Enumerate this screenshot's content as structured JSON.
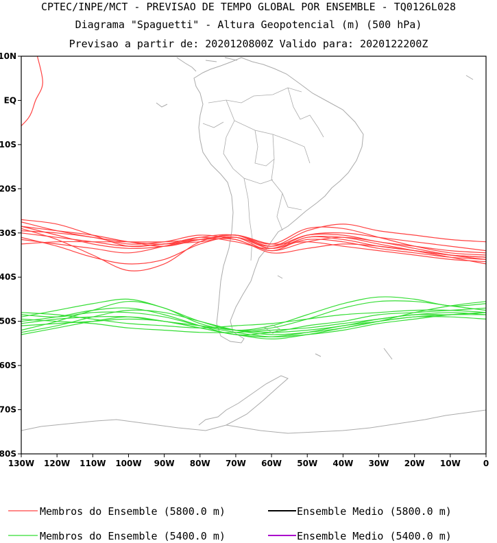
{
  "titles": {
    "line1": "CPTEC/INPE/MCT - PREVISAO DE TEMPO GLOBAL POR ENSEMBLE - TQ0126L028",
    "line2": "Diagrama \"Spaguetti\" - Altura Geopotencial (m) (500 hPa)",
    "line3": "Previsao a partir de: 2020120800Z  Valido para: 2020122200Z"
  },
  "legend": [
    {
      "label": "Membros do Ensemble (5800.0 m)",
      "color": "#ff4040"
    },
    {
      "label": "Ensemble Medio (5800.0 m)",
      "color": "#000000"
    },
    {
      "label": "Membros do Ensemble (5400.0 m)",
      "color": "#33dd33"
    },
    {
      "label": "Ensemble Medio (5400.0 m)",
      "color": "#aa00cc"
    }
  ],
  "chart_data": {
    "type": "line",
    "map_region": "South America",
    "xlim": [
      -130,
      0
    ],
    "ylim": [
      -80,
      10
    ],
    "x_ticks": [
      {
        "v": -130,
        "label": "130W"
      },
      {
        "v": -120,
        "label": "120W"
      },
      {
        "v": -110,
        "label": "110W"
      },
      {
        "v": -100,
        "label": "100W"
      },
      {
        "v": -90,
        "label": "90W"
      },
      {
        "v": -80,
        "label": "80W"
      },
      {
        "v": -70,
        "label": "70W"
      },
      {
        "v": -60,
        "label": "60W"
      },
      {
        "v": -50,
        "label": "50W"
      },
      {
        "v": -40,
        "label": "40W"
      },
      {
        "v": -30,
        "label": "30W"
      },
      {
        "v": -20,
        "label": "20W"
      },
      {
        "v": -10,
        "label": "10W"
      },
      {
        "v": 0,
        "label": "0"
      }
    ],
    "y_ticks": [
      {
        "v": 10,
        "label": "10N"
      },
      {
        "v": 0,
        "label": "EQ"
      },
      {
        "v": -10,
        "label": "10S"
      },
      {
        "v": -20,
        "label": "20S"
      },
      {
        "v": -30,
        "label": "30S"
      },
      {
        "v": -40,
        "label": "40S"
      },
      {
        "v": -50,
        "label": "50S"
      },
      {
        "v": -60,
        "label": "60S"
      },
      {
        "v": -70,
        "label": "70S"
      },
      {
        "v": -80,
        "label": "80S"
      }
    ],
    "x": [
      -130,
      -120,
      -110,
      -100,
      -90,
      -80,
      -70,
      -60,
      -50,
      -40,
      -30,
      -20,
      -10,
      0
    ],
    "series": [
      {
        "color": "#ff4040",
        "group": "5800",
        "values": [
          -28.5,
          -30.5,
          -32.5,
          -33.5,
          -33,
          -31.5,
          -31,
          -34,
          -31,
          -31.5,
          -33,
          -34,
          -35,
          -35.5
        ]
      },
      {
        "color": "#ff4040",
        "group": "5800",
        "values": [
          -27.5,
          -29.5,
          -31,
          -32,
          -32.5,
          -31,
          -32,
          -33.5,
          -30.5,
          -30,
          -31,
          -32,
          -33,
          -34
        ]
      },
      {
        "color": "#ff4040",
        "group": "5800",
        "values": [
          -27,
          -28,
          -30.5,
          -33,
          -32.5,
          -32,
          -31,
          -33,
          -29.5,
          -28,
          -29.5,
          -30.5,
          -31.5,
          -32
        ]
      },
      {
        "color": "#ff4040",
        "group": "5800",
        "values": [
          -30,
          -31,
          -32,
          -33,
          -32.5,
          -31.5,
          -30.5,
          -32.5,
          -32,
          -33,
          -34,
          -35,
          -36,
          -36.5
        ]
      },
      {
        "color": "#ff4040",
        "group": "5800",
        "values": [
          -31,
          -33,
          -35.5,
          -37,
          -36,
          -32.5,
          -31,
          -33.5,
          -31.5,
          -32,
          -33.5,
          -34.5,
          -35.5,
          -36
        ]
      },
      {
        "color": "#ff4040",
        "group": "5800",
        "values": [
          -29,
          -31.5,
          -35,
          -38.5,
          -37,
          -32,
          -30.5,
          -33.5,
          -31,
          -31,
          -32.5,
          -34,
          -35.5,
          -37
        ]
      },
      {
        "color": "#ff4040",
        "group": "5800",
        "values": [
          -32.5,
          -32,
          -32,
          -32,
          -32,
          -31.5,
          -31.5,
          -34.5,
          -33.5,
          -32.5,
          -33,
          -34,
          -35,
          -35.5
        ]
      },
      {
        "color": "#ff4040",
        "group": "5800",
        "values": [
          -28.5,
          -29.5,
          -30.5,
          -32,
          -33,
          -31.5,
          -30.5,
          -32.5,
          -29,
          -29,
          -31,
          -33,
          -34.5,
          -35
        ]
      },
      {
        "color": "#ff4040",
        "group": "5800",
        "values": [
          -31.5,
          -32.5,
          -33.5,
          -34.5,
          -33,
          -31,
          -30.5,
          -33,
          -30.5,
          -30.5,
          -32,
          -33,
          -34,
          -34.5
        ]
      },
      {
        "color": "#ff4040",
        "group": "5800",
        "values": [
          -29.5,
          -30,
          -31,
          -32.5,
          -32,
          -30.5,
          -31.5,
          -34,
          -32,
          -31,
          -32,
          -33.5,
          -35,
          -36
        ]
      },
      {
        "color": "#33dd33",
        "group": "5400",
        "values": [
          -48.5,
          -49,
          -48,
          -48,
          -49,
          -51,
          -52.5,
          -53.5,
          -53,
          -52,
          -50.5,
          -49.5,
          -48.5,
          -48
        ]
      },
      {
        "color": "#33dd33",
        "group": "5400",
        "values": [
          -50,
          -49,
          -47.5,
          -47,
          -48.5,
          -51,
          -53,
          -52.5,
          -51,
          -50,
          -48.5,
          -48,
          -47.5,
          -47
        ]
      },
      {
        "color": "#33dd33",
        "group": "5400",
        "values": [
          -49,
          -47.5,
          -46,
          -45,
          -47,
          -50,
          -52,
          -51.5,
          -49.5,
          -47,
          -45.5,
          -45.5,
          -46.5,
          -47.5
        ]
      },
      {
        "color": "#33dd33",
        "group": "5400",
        "values": [
          -52,
          -50,
          -47.5,
          -45.5,
          -47,
          -50.5,
          -52,
          -51,
          -48.5,
          -46,
          -44.5,
          -45,
          -46.5,
          -46
        ]
      },
      {
        "color": "#33dd33",
        "group": "5400",
        "values": [
          -48,
          -48.5,
          -49.5,
          -50.5,
          -51,
          -51.5,
          -51,
          -50.5,
          -49.5,
          -48.5,
          -48,
          -47.5,
          -47.5,
          -48
        ]
      },
      {
        "color": "#33dd33",
        "group": "5400",
        "values": [
          -51,
          -50.5,
          -50,
          -49.5,
          -50,
          -51.5,
          -53,
          -53.5,
          -52.5,
          -51,
          -50,
          -49,
          -48.5,
          -48.5
        ]
      },
      {
        "color": "#33dd33",
        "group": "5400",
        "values": [
          -49.5,
          -50,
          -50.5,
          -51.5,
          -52,
          -52.5,
          -52.5,
          -52,
          -51.5,
          -50.5,
          -49.5,
          -48.5,
          -48.5,
          -48
        ]
      },
      {
        "color": "#33dd33",
        "group": "5400",
        "values": [
          -52.5,
          -51,
          -49,
          -47.5,
          -48,
          -50,
          -52,
          -53,
          -52.5,
          -51.5,
          -50,
          -48,
          -46.5,
          -45.5
        ]
      },
      {
        "color": "#33dd33",
        "group": "5400",
        "values": [
          -50.5,
          -49.5,
          -49,
          -49,
          -50,
          -51,
          -52,
          -52.5,
          -52,
          -51,
          -49.5,
          -48.5,
          -48,
          -48.5
        ]
      },
      {
        "color": "#33dd33",
        "group": "5400",
        "values": [
          -53,
          -51.5,
          -50,
          -49,
          -50,
          -51.5,
          -53,
          -54,
          -53,
          -51.5,
          -50,
          -49,
          -49,
          -49.5
        ]
      },
      {
        "color": "#ff4040",
        "group": "5800-fragment",
        "x": [
          -133,
          -128,
          -126,
          -124,
          -125.5
        ],
        "values": [
          -8,
          -4,
          0,
          4,
          10
        ]
      }
    ]
  }
}
